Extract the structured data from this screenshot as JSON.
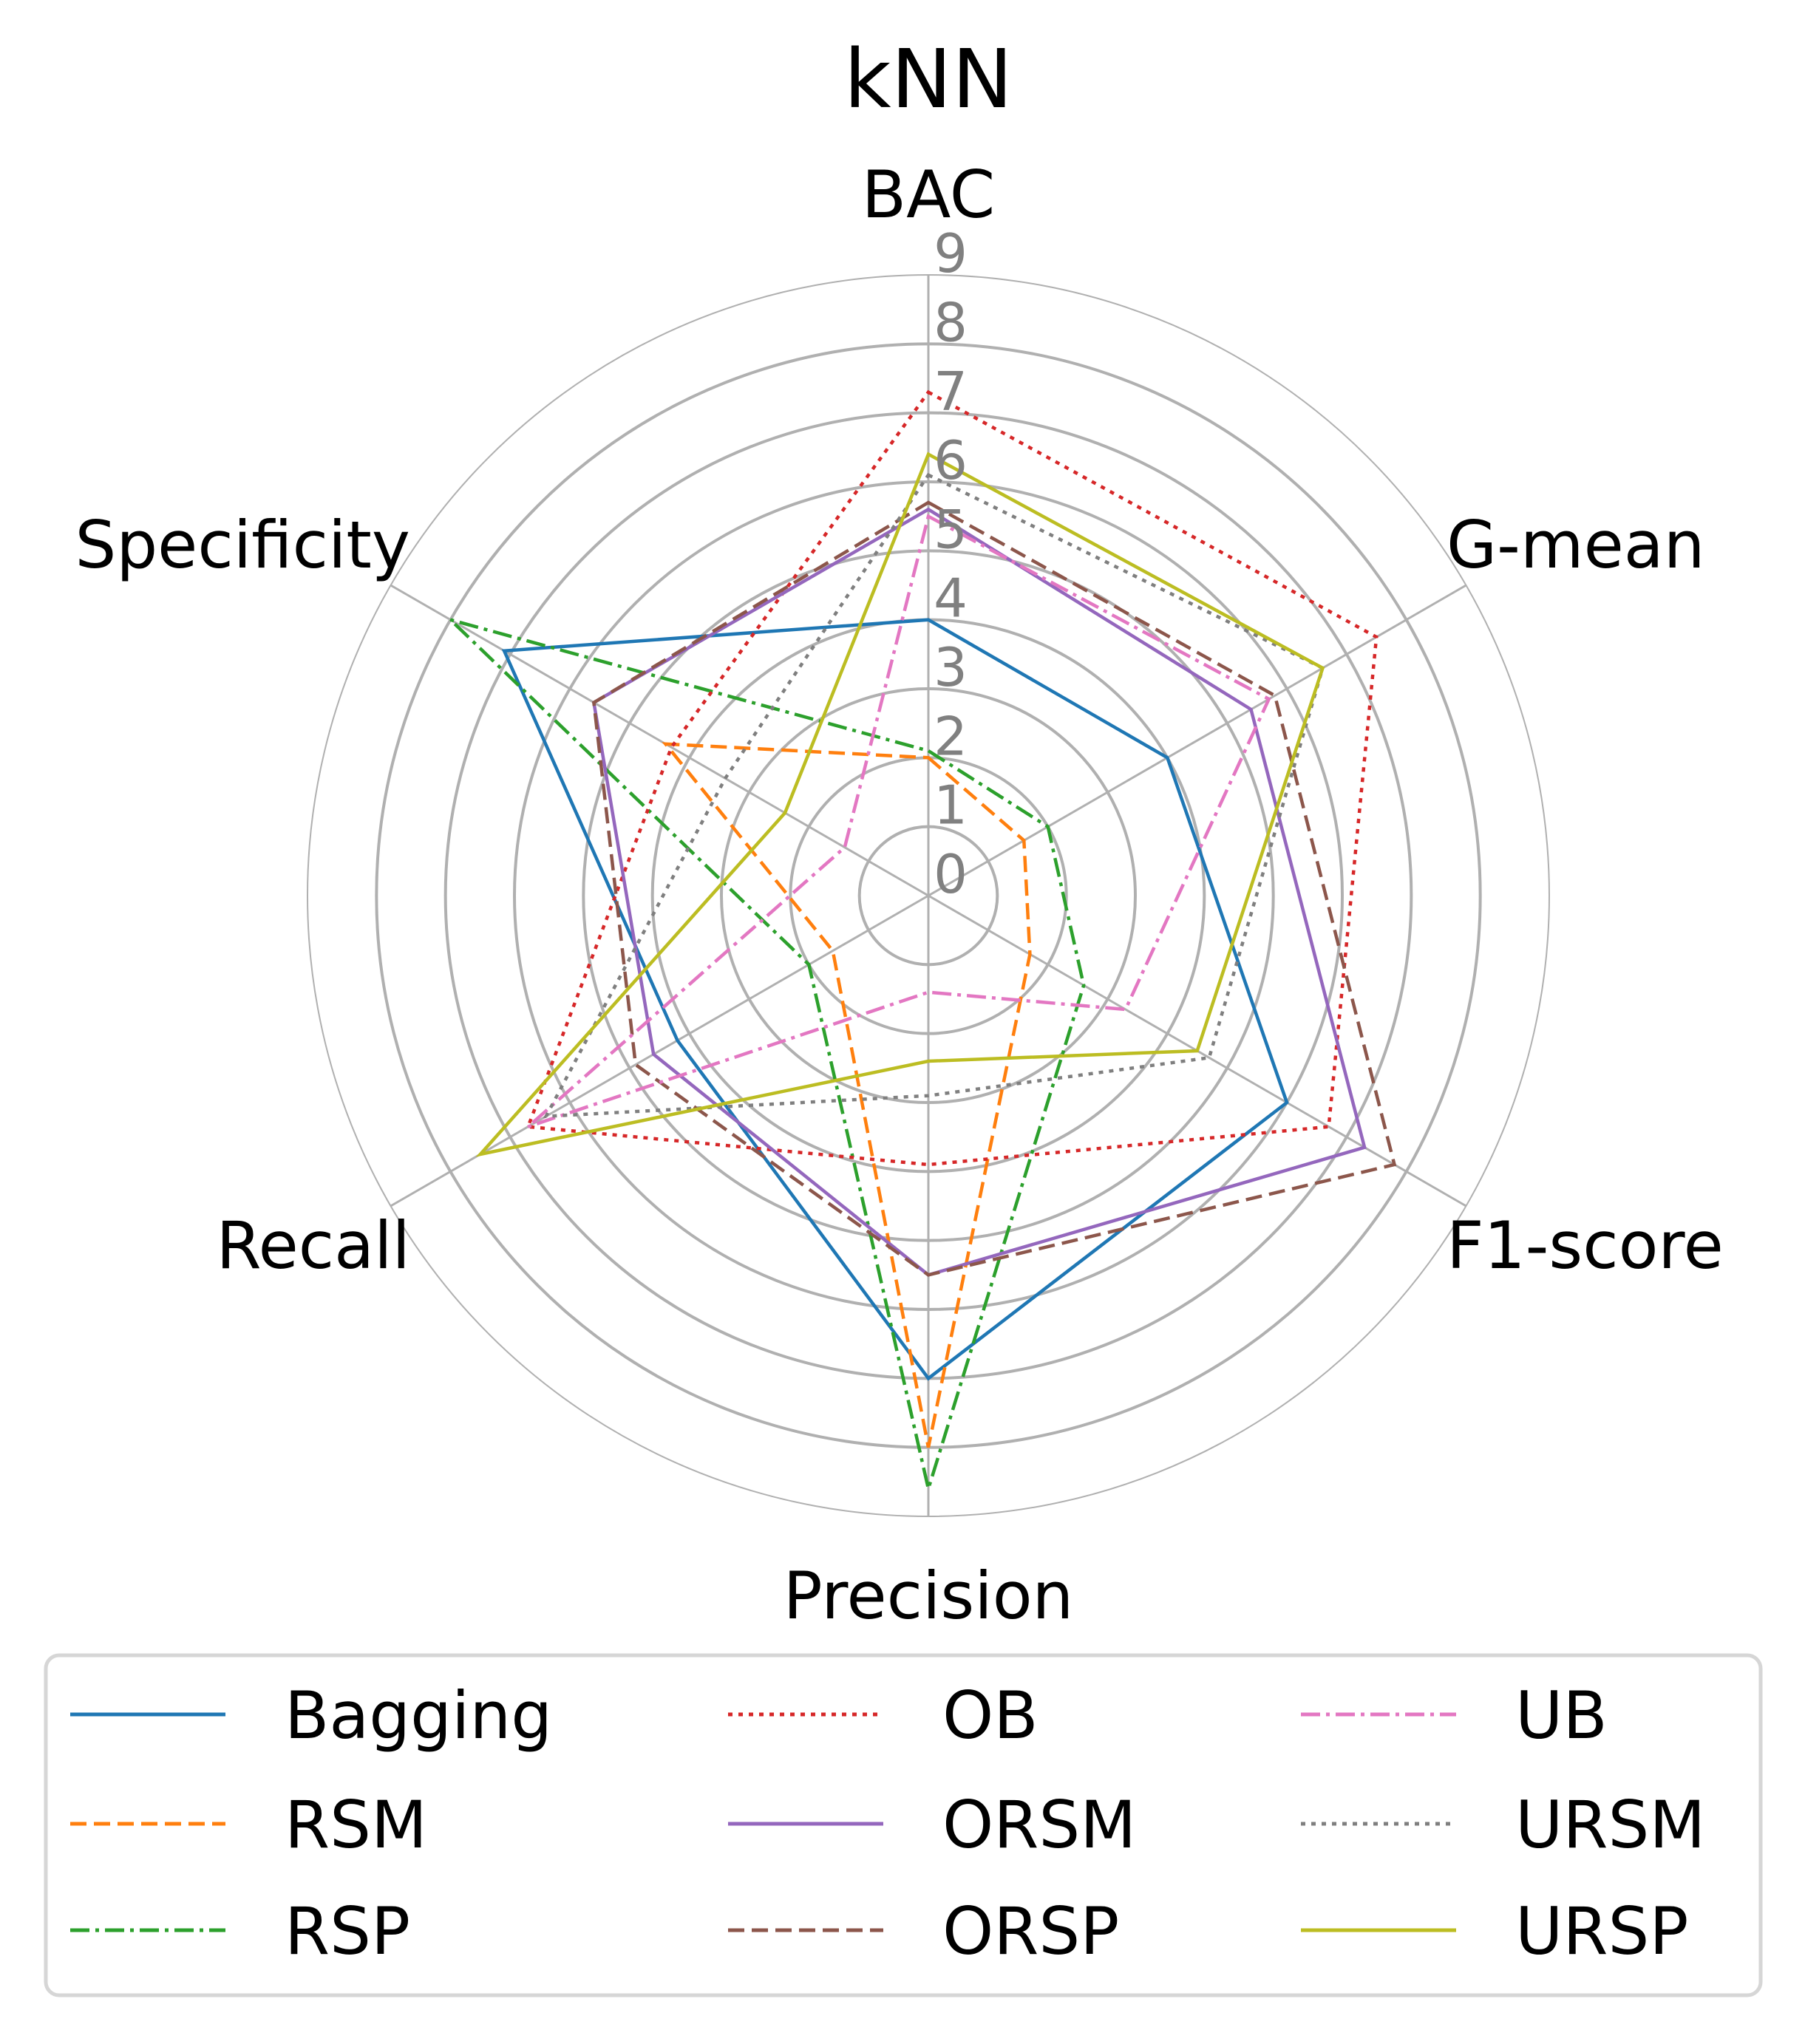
{
  "chart_data": {
    "type": "radar",
    "title": "kNN",
    "axes": [
      "BAC",
      "G-mean",
      "F1-score",
      "Precision",
      "Recall",
      "Specificity"
    ],
    "rlim": [
      0,
      9
    ],
    "ticks": [
      "0",
      "1",
      "2",
      "3",
      "4",
      "5",
      "6",
      "7",
      "8",
      "9"
    ],
    "grid": true,
    "legend_position": "bottom",
    "legend_columns": 3,
    "series": [
      {
        "name": "Bagging",
        "color": "#1f77b4",
        "dash": "solid",
        "values": [
          4.0,
          4.0,
          6.0,
          7.0,
          4.2,
          7.1
        ]
      },
      {
        "name": "RSM",
        "color": "#ff7f0e",
        "dash": "dashed",
        "values": [
          2.0,
          1.6,
          1.7,
          8.0,
          1.6,
          4.4
        ]
      },
      {
        "name": "RSP",
        "color": "#2ca02c",
        "dash": "dashdot",
        "values": [
          2.1,
          2.0,
          2.6,
          8.6,
          2.0,
          8.0
        ]
      },
      {
        "name": "OB",
        "color": "#d62728",
        "dash": "dotted",
        "values": [
          7.3,
          7.5,
          6.7,
          3.9,
          6.7,
          4.3
        ]
      },
      {
        "name": "ORSM",
        "color": "#9467bd",
        "dash": "solid",
        "values": [
          5.6,
          5.4,
          7.3,
          5.5,
          4.6,
          5.6
        ]
      },
      {
        "name": "ORSP",
        "color": "#8c564b",
        "dash": "dashed",
        "values": [
          5.7,
          5.8,
          7.8,
          5.5,
          4.9,
          5.6
        ]
      },
      {
        "name": "UB",
        "color": "#e377c2",
        "dash": "dashdot",
        "values": [
          5.5,
          5.7,
          3.3,
          1.4,
          6.7,
          1.4
        ]
      },
      {
        "name": "URSM",
        "color": "#7f7f7f",
        "dash": "dotted",
        "values": [
          6.1,
          6.6,
          4.7,
          2.9,
          6.4,
          3.4
        ]
      },
      {
        "name": "URSP",
        "color": "#bcbd22",
        "dash": "solid",
        "values": [
          6.4,
          6.6,
          4.5,
          2.4,
          7.5,
          2.4
        ]
      }
    ]
  }
}
